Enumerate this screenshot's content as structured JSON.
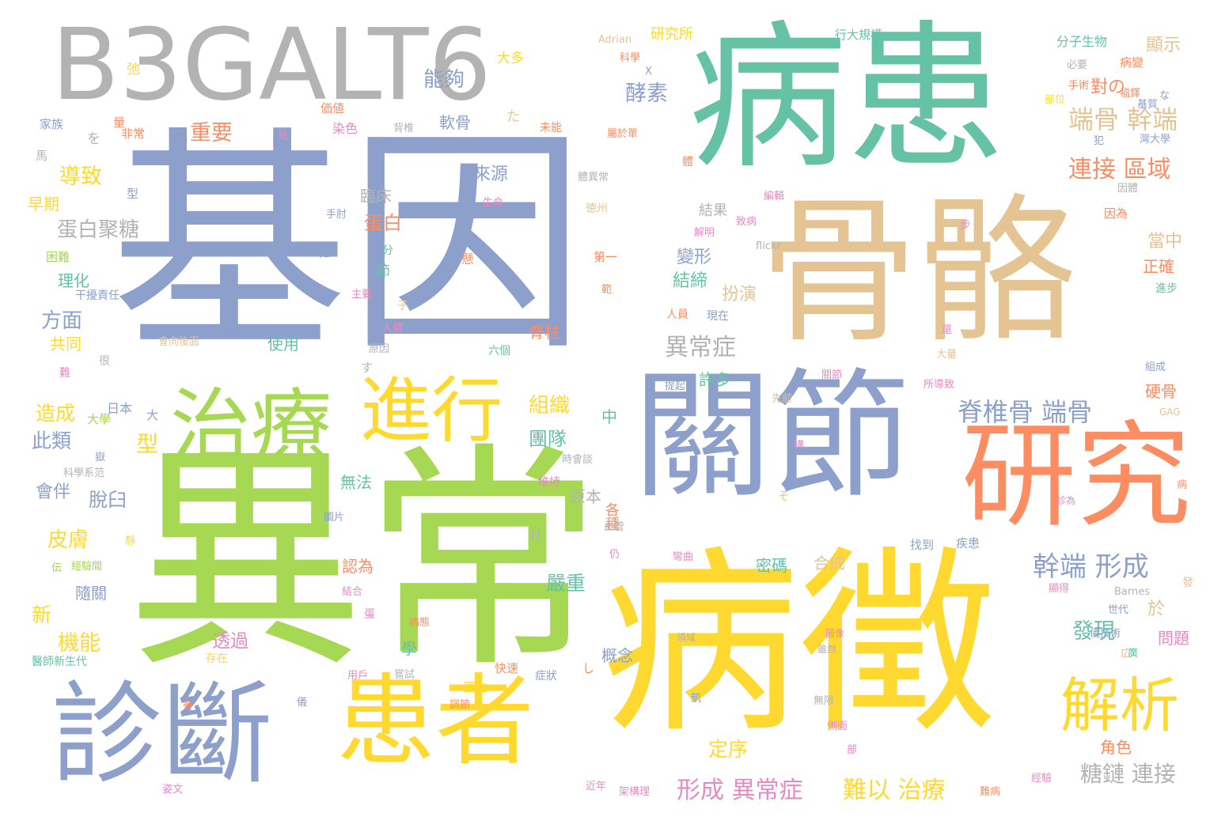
{
  "wordcloud": {
    "background": "#ffffff",
    "palette": {
      "blue": "#8da0cb",
      "teal": "#66c2a5",
      "tan": "#e5c494",
      "green": "#a6d854",
      "yellow": "#ffd92f",
      "orange": "#fc8d62",
      "pink": "#e78ac3",
      "gray": "#b3b3b3"
    },
    "words": [
      {
        "text": "基因",
        "color": "#8da0cb"
      },
      {
        "text": "異常",
        "color": "#a6d854"
      },
      {
        "text": "病患",
        "color": "#66c2a5"
      },
      {
        "text": "病徵",
        "color": "#ffd92f"
      },
      {
        "text": "骨骼",
        "color": "#e5c494"
      },
      {
        "text": "關節",
        "color": "#8da0cb"
      },
      {
        "text": "B3GALT6",
        "color": "#b3b3b3"
      },
      {
        "text": "研究",
        "color": "#fc8d62"
      },
      {
        "text": "治療",
        "color": "#a6d854"
      },
      {
        "text": "進行",
        "color": "#ffd92f"
      },
      {
        "text": "患者",
        "color": "#ffd92f"
      },
      {
        "text": "診斷",
        "color": "#8da0cb"
      },
      {
        "text": "解析",
        "color": "#ffd92f"
      },
      {
        "text": "幹端 形成",
        "color": "#8da0cb"
      },
      {
        "text": "脊椎骨 端骨",
        "color": "#8da0cb"
      },
      {
        "text": "連接 區域",
        "color": "#fc8d62"
      },
      {
        "text": "端骨 幹端",
        "color": "#e5c494"
      },
      {
        "text": "形成 異常症",
        "color": "#e78ac3"
      },
      {
        "text": "難以 治療",
        "color": "#ffd92f"
      },
      {
        "text": "糖鏈 連接",
        "color": "#b3b3b3"
      },
      {
        "text": "異常症",
        "color": "#b3b3b3"
      },
      {
        "text": "酵素",
        "color": "#8da0cb"
      },
      {
        "text": "能夠",
        "color": "#8da0cb"
      },
      {
        "text": "重要",
        "color": "#fc8d62"
      },
      {
        "text": "導致",
        "color": "#ffd92f"
      },
      {
        "text": "蛋白聚糖",
        "color": "#b3b3b3"
      },
      {
        "text": "蛋白",
        "color": "#fc8d62"
      },
      {
        "text": "來源",
        "color": "#8da0cb"
      },
      {
        "text": "臨床",
        "color": "#b3b3b3"
      },
      {
        "text": "組織",
        "color": "#ffd92f"
      },
      {
        "text": "團隊",
        "color": "#66c2a5"
      },
      {
        "text": "對の",
        "color": "#fc8d62"
      },
      {
        "text": "變形",
        "color": "#8da0cb"
      },
      {
        "text": "結締",
        "color": "#66c2a5"
      },
      {
        "text": "扮演",
        "color": "#e5c494"
      },
      {
        "text": "造成",
        "color": "#ffd92f"
      },
      {
        "text": "此類",
        "color": "#8da0cb"
      },
      {
        "text": "型",
        "color": "#ffd92f"
      },
      {
        "text": "皮膚",
        "color": "#ffd92f"
      },
      {
        "text": "機能",
        "color": "#ffd92f"
      },
      {
        "text": "嚴重",
        "color": "#66c2a5"
      },
      {
        "text": "發現",
        "color": "#66c2a5"
      },
      {
        "text": "定序",
        "color": "#ffd92f"
      },
      {
        "text": "透過",
        "color": "#e78ac3"
      },
      {
        "text": "方面",
        "color": "#8da0cb"
      },
      {
        "text": "理化",
        "color": "#66c2a5"
      },
      {
        "text": "共同",
        "color": "#ffd92f"
      },
      {
        "text": "使用",
        "color": "#66c2a5"
      },
      {
        "text": "早期",
        "color": "#ffd92f"
      },
      {
        "text": "會伴",
        "color": "#8da0cb"
      },
      {
        "text": "脫臼",
        "color": "#8da0cb"
      },
      {
        "text": "無法",
        "color": "#66c2a5"
      },
      {
        "text": "認為",
        "color": "#fc8d62"
      },
      {
        "text": "密碼",
        "color": "#66c2a5"
      },
      {
        "text": "合成",
        "color": "#e5c494"
      },
      {
        "text": "許多",
        "color": "#66c2a5"
      },
      {
        "text": "概念",
        "color": "#8da0cb"
      },
      {
        "text": "顯示",
        "color": "#e5c494"
      },
      {
        "text": "當中",
        "color": "#e5c494"
      },
      {
        "text": "正確",
        "color": "#fc8d62"
      },
      {
        "text": "硬骨",
        "color": "#fc8d62"
      },
      {
        "text": "問題",
        "color": "#e78ac3"
      },
      {
        "text": "於",
        "color": "#e5c494"
      },
      {
        "text": "角色",
        "color": "#fc8d62"
      },
      {
        "text": "新",
        "color": "#ffd92f"
      },
      {
        "text": "隨關",
        "color": "#8da0cb"
      },
      {
        "text": "研究所",
        "color": "#ffd92f"
      },
      {
        "text": "分子生物",
        "color": "#66c2a5"
      },
      {
        "text": "行大規模",
        "color": "#66c2a5"
      },
      {
        "text": "軟骨",
        "color": "#8da0cb"
      },
      {
        "text": "結果",
        "color": "#b3b3b3"
      },
      {
        "text": "大多",
        "color": "#ffd92f"
      },
      {
        "text": "節",
        "color": "#66c2a5"
      },
      {
        "text": "學",
        "color": "#66c2a5"
      },
      {
        "text": "各種",
        "color": "#fc8d62"
      },
      {
        "text": "原本",
        "color": "#b3b3b3"
      },
      {
        "text": "非常",
        "color": "#fc8d62"
      },
      {
        "text": "家族",
        "color": "#8da0cb"
      },
      {
        "text": "日本",
        "color": "#8da0cb"
      },
      {
        "text": "大學",
        "color": "#a6d854"
      },
      {
        "text": "科學系范",
        "color": "#b3b3b3"
      },
      {
        "text": "醫師新生代",
        "color": "#66c2a5"
      },
      {
        "text": "干擾責任",
        "color": "#8da0cb"
      },
      {
        "text": "困難",
        "color": "#a6d854"
      },
      {
        "text": "六個",
        "color": "#66c2a5"
      },
      {
        "text": "脊柱",
        "color": "#fc8d62"
      },
      {
        "text": "生命",
        "color": "#e78ac3"
      },
      {
        "text": "徳州",
        "color": "#e5c494"
      },
      {
        "text": "第一",
        "color": "#fc8d62"
      },
      {
        "text": "體異常",
        "color": "#b3b3b3"
      },
      {
        "text": "染色",
        "color": "#e78ac3"
      },
      {
        "text": "遺傳",
        "color": "#8da0cb"
      },
      {
        "text": "背椎",
        "color": "#b3b3b3"
      },
      {
        "text": "未能",
        "color": "#fc8d62"
      },
      {
        "text": "屬於單",
        "color": "#fc8d62"
      },
      {
        "text": "必要",
        "color": "#b3b3b3"
      },
      {
        "text": "手術",
        "color": "#fc8d62"
      },
      {
        "text": "部位",
        "color": "#ffd92f"
      },
      {
        "text": "病變",
        "color": "#fc8d62"
      },
      {
        "text": "基質",
        "color": "#8da0cb"
      },
      {
        "text": "灣大學",
        "color": "#8da0cb"
      },
      {
        "text": "因為",
        "color": "#fc8d62"
      },
      {
        "text": "進步",
        "color": "#66c2a5"
      },
      {
        "text": "組成",
        "color": "#8da0cb"
      },
      {
        "text": "GAG",
        "color": "#e5c494"
      },
      {
        "text": "診為",
        "color": "#e78ac3"
      },
      {
        "text": "Barnes",
        "color": "#b3b3b3"
      },
      {
        "text": "世代",
        "color": "#8da0cb"
      },
      {
        "text": "儀技術",
        "color": "#8da0cb"
      },
      {
        "text": "顯得",
        "color": "#e78ac3"
      },
      {
        "text": "找到",
        "color": "#8da0cb"
      },
      {
        "text": "疾患",
        "color": "#8da0cb"
      },
      {
        "text": "大量",
        "color": "#e5c494"
      },
      {
        "text": "所導致",
        "color": "#e78ac3"
      },
      {
        "text": "關節",
        "color": "#e78ac3"
      },
      {
        "text": "現在",
        "color": "#8da0cb"
      },
      {
        "text": "人員",
        "color": "#fc8d62"
      },
      {
        "text": "解明",
        "color": "#e78ac3"
      },
      {
        "text": "致病",
        "color": "#e78ac3"
      },
      {
        "text": "flickr",
        "color": "#b3b3b3"
      },
      {
        "text": "提起",
        "color": "#8da0cb"
      },
      {
        "text": "先前",
        "color": "#e5c494"
      },
      {
        "text": "彎曲",
        "color": "#e78ac3"
      },
      {
        "text": "領域",
        "color": "#b3b3b3"
      },
      {
        "text": "圖像",
        "color": "#e78ac3"
      },
      {
        "text": "雖然",
        "color": "#b3b3b3"
      },
      {
        "text": "無限",
        "color": "#b3b3b3"
      },
      {
        "text": "側面",
        "color": "#e78ac3"
      },
      {
        "text": "近年",
        "color": "#e78ac3"
      },
      {
        "text": "架構理",
        "color": "#e78ac3"
      },
      {
        "text": "難病",
        "color": "#fc8d62"
      },
      {
        "text": "維持",
        "color": "#e78ac3"
      },
      {
        "text": "時會談",
        "color": "#b3b3b3"
      },
      {
        "text": "快速",
        "color": "#fc8d62"
      },
      {
        "text": "症狀",
        "color": "#8da0cb"
      },
      {
        "text": "國立",
        "color": "#ffd92f"
      },
      {
        "text": "嘗試",
        "color": "#b3b3b3"
      },
      {
        "text": "用戶",
        "color": "#e78ac3"
      },
      {
        "text": "病態",
        "color": "#fc8d62"
      },
      {
        "text": "圖片",
        "color": "#8da0cb"
      },
      {
        "text": "結合",
        "color": "#e78ac3"
      },
      {
        "text": "存在",
        "color": "#ffd92f"
      },
      {
        "text": "人體",
        "color": "#e78ac3"
      },
      {
        "text": "原因",
        "color": "#b3b3b3"
      },
      {
        "text": "主要",
        "color": "#e78ac3"
      },
      {
        "text": "會向後面",
        "color": "#e5c494"
      },
      {
        "text": "經驗",
        "color": "#e78ac3"
      },
      {
        "text": "姿文",
        "color": "#e78ac3"
      },
      {
        "text": "調節",
        "color": "#fc8d62"
      },
      {
        "text": "經驗間",
        "color": "#a6d854"
      },
      {
        "text": "Adrian",
        "color": "#e5c494"
      },
      {
        "text": "科學",
        "color": "#fc8d62"
      },
      {
        "text": "編輯",
        "color": "#e78ac3"
      },
      {
        "text": "因體",
        "color": "#b3b3b3"
      },
      {
        "text": "步",
        "color": "#e78ac3"
      },
      {
        "text": "手肘",
        "color": "#8da0cb"
      },
      {
        "text": "型",
        "color": "#8da0cb"
      },
      {
        "text": "馬",
        "color": "#b3b3b3"
      },
      {
        "text": "を",
        "color": "#b3b3b3"
      },
      {
        "text": "た",
        "color": "#e5c494"
      },
      {
        "text": "に",
        "color": "#8da0cb"
      },
      {
        "text": "す",
        "color": "#b3b3b3"
      },
      {
        "text": "そ",
        "color": "#e5c494"
      },
      {
        "text": "け",
        "color": "#b3b3b3"
      },
      {
        "text": "し",
        "color": "#fc8d62"
      },
      {
        "text": "な",
        "color": "#8da0cb"
      },
      {
        "text": "仍",
        "color": "#e78ac3"
      },
      {
        "text": "分",
        "color": "#66c2a5"
      },
      {
        "text": "子",
        "color": "#e5c494"
      },
      {
        "text": "中",
        "color": "#66c2a5"
      },
      {
        "text": "大",
        "color": "#8da0cb"
      },
      {
        "text": "很",
        "color": "#b3b3b3"
      },
      {
        "text": "伝",
        "color": "#a6d854"
      },
      {
        "text": "靜",
        "color": "#ffd92f"
      },
      {
        "text": "骨",
        "color": "#fc8d62"
      },
      {
        "text": "儀",
        "color": "#8da0cb"
      },
      {
        "text": "凱",
        "color": "#8da0cb"
      },
      {
        "text": "部",
        "color": "#e78ac3"
      },
      {
        "text": "弛",
        "color": "#ffd92f"
      },
      {
        "text": "廣",
        "color": "#66c2a5"
      },
      {
        "text": "還",
        "color": "#e78ac3"
      },
      {
        "text": "構",
        "color": "#e78ac3"
      },
      {
        "text": "病",
        "color": "#fc8d62"
      },
      {
        "text": "發",
        "color": "#e5c494"
      },
      {
        "text": "広",
        "color": "#e5c494"
      },
      {
        "text": "犯",
        "color": "#8da0cb"
      },
      {
        "text": "體",
        "color": "#fc8d62"
      },
      {
        "text": "見",
        "color": "#e78ac3"
      },
      {
        "text": "量",
        "color": "#fc8d62"
      },
      {
        "text": "難",
        "color": "#e78ac3"
      },
      {
        "text": "血管",
        "color": "#b3b3b3"
      },
      {
        "text": "蛋",
        "color": "#e78ac3"
      },
      {
        "text": "嶽",
        "color": "#8da0cb"
      },
      {
        "text": "範",
        "color": "#fc8d62"
      },
      {
        "text": "懸",
        "color": "#fc8d62"
      },
      {
        "text": "X",
        "color": "#8da0cb"
      },
      {
        "text": "福鐸",
        "color": "#fc8d62"
      },
      {
        "text": "価値",
        "color": "#fc8d62"
      }
    ]
  }
}
